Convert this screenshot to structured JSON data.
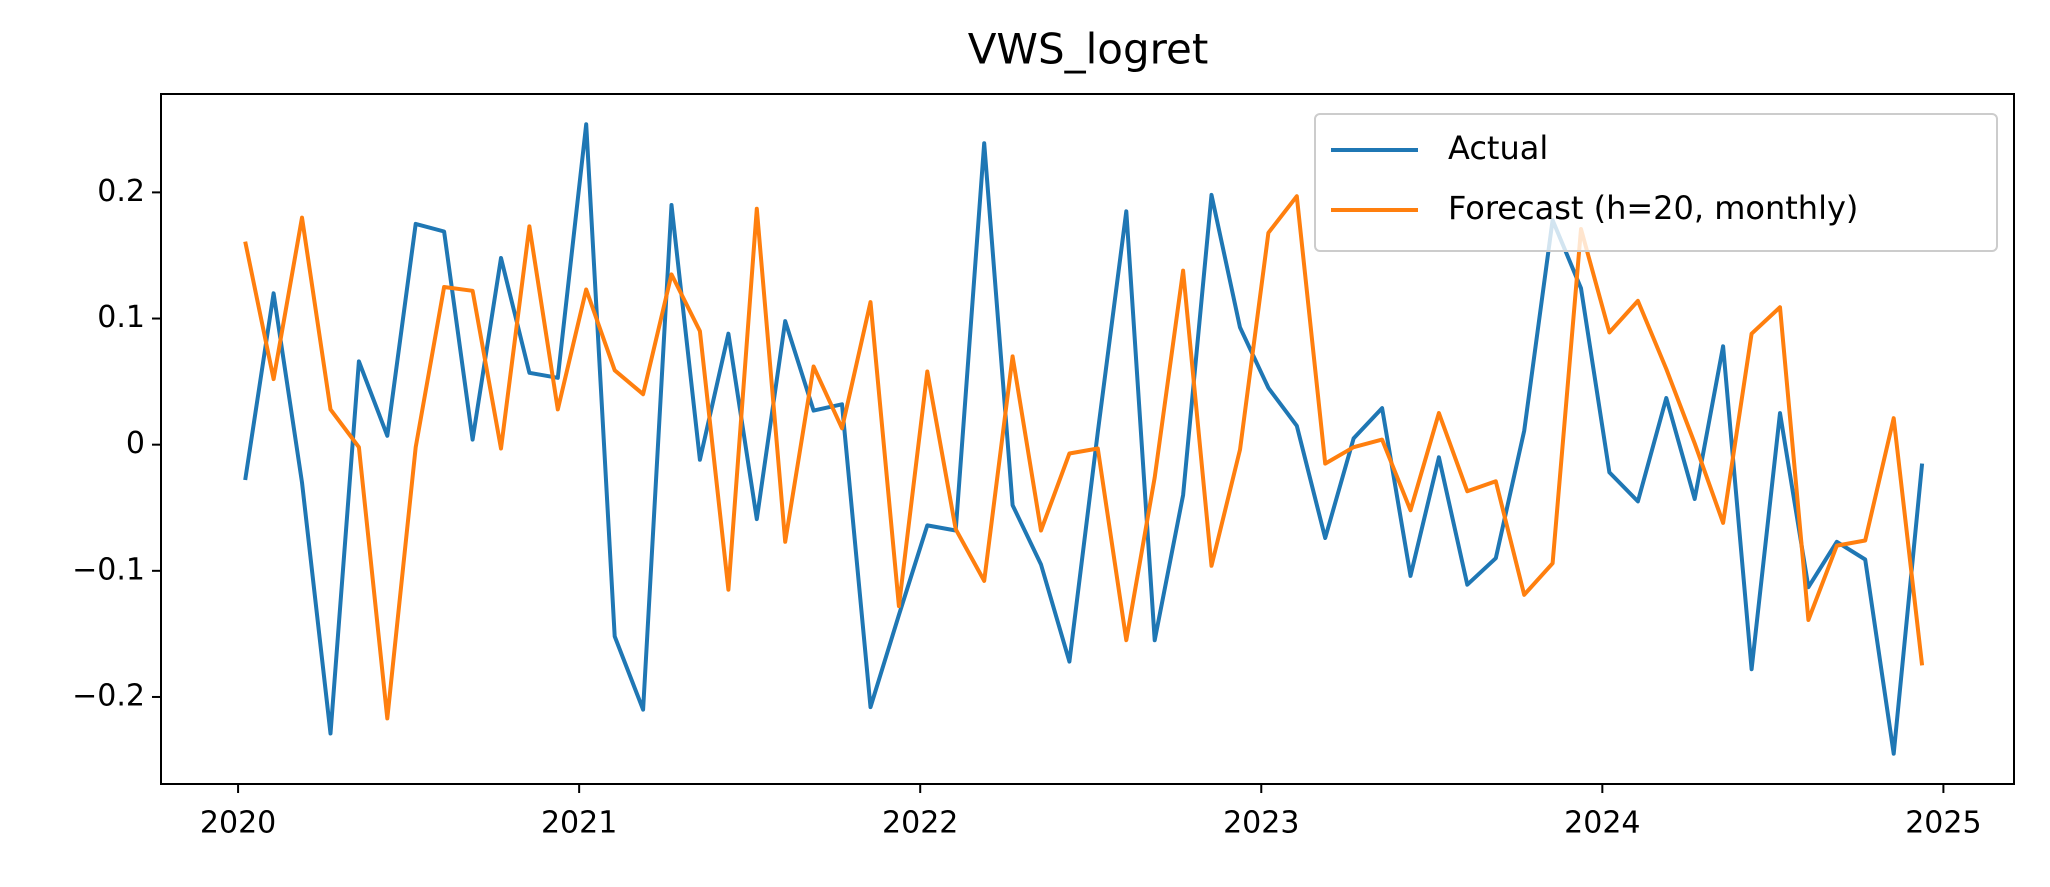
{
  "chart_data": {
    "type": "line",
    "title": "VWS_logret",
    "x": [
      "2020-01",
      "2020-02",
      "2020-03",
      "2020-04",
      "2020-05",
      "2020-06",
      "2020-07",
      "2020-08",
      "2020-09",
      "2020-10",
      "2020-11",
      "2020-12",
      "2021-01",
      "2021-02",
      "2021-03",
      "2021-04",
      "2021-05",
      "2021-06",
      "2021-07",
      "2021-08",
      "2021-09",
      "2021-10",
      "2021-11",
      "2021-12",
      "2022-01",
      "2022-02",
      "2022-03",
      "2022-04",
      "2022-05",
      "2022-06",
      "2022-07",
      "2022-08",
      "2022-09",
      "2022-10",
      "2022-11",
      "2022-12",
      "2023-01",
      "2023-02",
      "2023-03",
      "2023-04",
      "2023-05",
      "2023-06",
      "2023-07",
      "2023-08",
      "2023-09",
      "2023-10",
      "2023-11",
      "2023-12",
      "2024-01",
      "2024-02",
      "2024-03",
      "2024-04",
      "2024-05",
      "2024-06",
      "2024-07",
      "2024-08",
      "2024-09",
      "2024-10",
      "2024-11",
      "2024-12"
    ],
    "series": [
      {
        "name": "Actual",
        "color": "#1f77b4",
        "values": [
          -0.028,
          0.12,
          -0.03,
          -0.229,
          0.066,
          0.007,
          0.175,
          0.169,
          0.004,
          0.148,
          0.057,
          0.053,
          0.254,
          -0.152,
          -0.21,
          0.19,
          -0.012,
          0.088,
          -0.059,
          0.098,
          0.027,
          0.032,
          -0.208,
          -0.135,
          -0.064,
          -0.068,
          0.239,
          -0.048,
          -0.095,
          -0.172,
          0.01,
          0.185,
          -0.155,
          -0.04,
          0.198,
          0.093,
          0.045,
          0.015,
          -0.074,
          0.005,
          0.029,
          -0.104,
          -0.01,
          -0.111,
          -0.09,
          0.011,
          0.178,
          0.124,
          -0.022,
          -0.045,
          0.037,
          -0.043,
          0.078,
          -0.178,
          0.025,
          -0.113,
          -0.077,
          -0.091,
          -0.245,
          -0.015
        ]
      },
      {
        "name": "Forecast (h=20, monthly)",
        "color": "#ff7f0e",
        "values": [
          0.161,
          0.052,
          0.18,
          0.028,
          -0.002,
          -0.217,
          -0.002,
          0.125,
          0.122,
          -0.003,
          0.173,
          0.028,
          0.123,
          0.059,
          0.04,
          0.135,
          0.09,
          -0.115,
          0.187,
          -0.077,
          0.062,
          0.013,
          0.113,
          -0.128,
          0.058,
          -0.067,
          -0.108,
          0.07,
          -0.068,
          -0.007,
          -0.003,
          -0.155,
          -0.026,
          0.138,
          -0.096,
          -0.004,
          0.168,
          0.197,
          -0.015,
          -0.002,
          0.004,
          -0.052,
          0.025,
          -0.037,
          -0.029,
          -0.119,
          -0.094,
          0.171,
          0.089,
          0.114,
          0.06,
          0.001,
          -0.062,
          0.088,
          0.109,
          -0.139,
          -0.08,
          -0.076,
          0.021,
          -0.175
        ]
      }
    ],
    "xlim": [
      2019.774,
      2025.207
    ],
    "xticks": [
      2020,
      2021,
      2022,
      2023,
      2024,
      2025
    ],
    "ylim": [
      -0.269,
      0.278
    ],
    "yticks": [
      {
        "value": -0.2,
        "label": "−0.2"
      },
      {
        "value": -0.1,
        "label": "−0.1"
      },
      0.0,
      0.1,
      0.2
    ],
    "legend": "upper right"
  }
}
